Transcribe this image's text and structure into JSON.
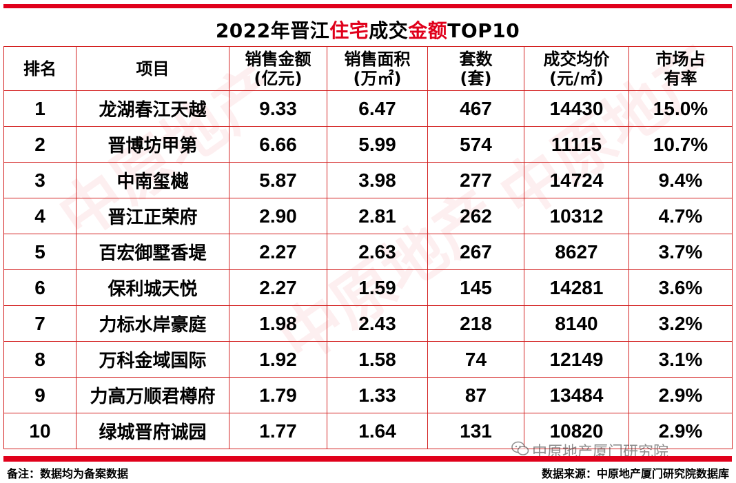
{
  "title": {
    "part1": "2022年晋江",
    "part2": "住宅",
    "part3": "成交",
    "part4": "金额",
    "part5": "TOP10"
  },
  "headers": {
    "rank": "排名",
    "project": "项目",
    "amount_l1": "销售金额",
    "amount_l2": "(亿元)",
    "area_l1": "销售面积",
    "area_l2": "(万㎡)",
    "units_l1": "套数",
    "units_l2": "(套)",
    "price_l1": "成交均价",
    "price_l2": "(元/㎡)",
    "share_l1": "市场占",
    "share_l2": "有率"
  },
  "rows": [
    {
      "rank": "1",
      "project": "龙湖春江天越",
      "amount": "9.33",
      "area": "6.47",
      "units": "467",
      "price": "14430",
      "share": "15.0%"
    },
    {
      "rank": "2",
      "project": "晋博坊甲第",
      "amount": "6.66",
      "area": "5.99",
      "units": "574",
      "price": "11115",
      "share": "10.7%"
    },
    {
      "rank": "3",
      "project": "中南玺樾",
      "amount": "5.87",
      "area": "3.98",
      "units": "277",
      "price": "14724",
      "share": "9.4%"
    },
    {
      "rank": "4",
      "project": "晋江正荣府",
      "amount": "2.90",
      "area": "2.81",
      "units": "262",
      "price": "10312",
      "share": "4.7%"
    },
    {
      "rank": "5",
      "project": "百宏御墅香堤",
      "amount": "2.27",
      "area": "2.63",
      "units": "267",
      "price": "8627",
      "share": "3.7%"
    },
    {
      "rank": "6",
      "project": "保利城天悦",
      "amount": "2.27",
      "area": "1.59",
      "units": "145",
      "price": "14281",
      "share": "3.6%"
    },
    {
      "rank": "7",
      "project": "力标水岸豪庭",
      "amount": "1.98",
      "area": "2.43",
      "units": "218",
      "price": "8140",
      "share": "3.2%"
    },
    {
      "rank": "8",
      "project": "万科金域国际",
      "amount": "1.92",
      "area": "1.58",
      "units": "74",
      "price": "12149",
      "share": "3.1%"
    },
    {
      "rank": "9",
      "project": "力高万顺君樽府",
      "amount": "1.79",
      "area": "1.33",
      "units": "87",
      "price": "13484",
      "share": "2.9%"
    },
    {
      "rank": "10",
      "project": "绿城晋府诚园",
      "amount": "1.77",
      "area": "1.64",
      "units": "131",
      "price": "10820",
      "share": "2.9%"
    }
  ],
  "footer": {
    "note": "备注：数据均为备案数据",
    "source": "数据来源：中原地产厦门研究院数据库"
  },
  "watermark": {
    "account": "中原地产厦门研究院",
    "logo_text": "中原地产"
  },
  "colors": {
    "accent": "#e0001b",
    "border": "#d32020"
  }
}
